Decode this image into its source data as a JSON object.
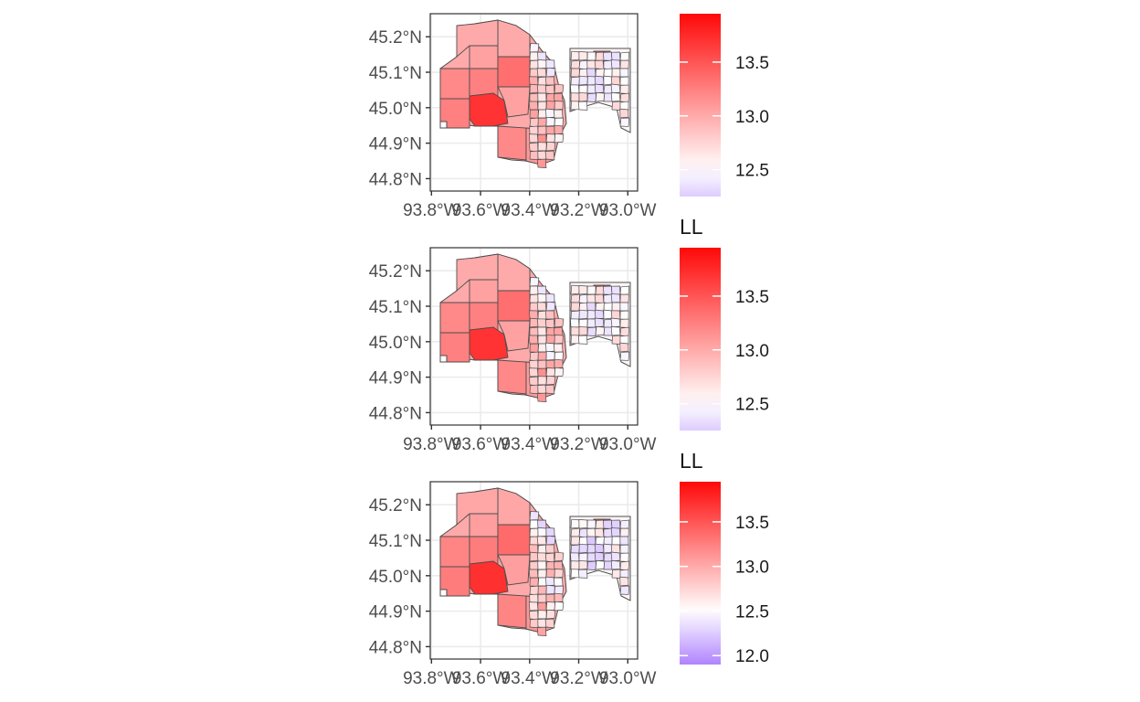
{
  "figure": {
    "panels": [
      {
        "legend_title": "",
        "legend_ticks": [
          "13.5",
          "13.0",
          "12.5"
        ],
        "color_range": [
          12.25,
          13.95
        ]
      },
      {
        "legend_title": "LL",
        "legend_ticks": [
          "13.5",
          "13.0",
          "12.5"
        ],
        "color_range": [
          12.25,
          13.95
        ]
      },
      {
        "legend_title": "LL",
        "legend_ticks": [
          "13.5",
          "13.0",
          "12.5",
          "12.0"
        ],
        "color_range": [
          11.9,
          13.95
        ]
      }
    ],
    "y_ticks": [
      "45.2°N",
      "45.1°N",
      "45.0°N",
      "44.9°N",
      "44.8°N"
    ],
    "x_ticks": [
      "93.8°W",
      "93.6°W",
      "93.4°W",
      "93.2°W",
      "93.0°W"
    ],
    "colors": {
      "low": "#b084ff",
      "mid": "#ffffff",
      "high": "#ff0000",
      "border": "#4d4d4d",
      "grid": "#ebebeb",
      "frame": "#333333"
    }
  }
}
